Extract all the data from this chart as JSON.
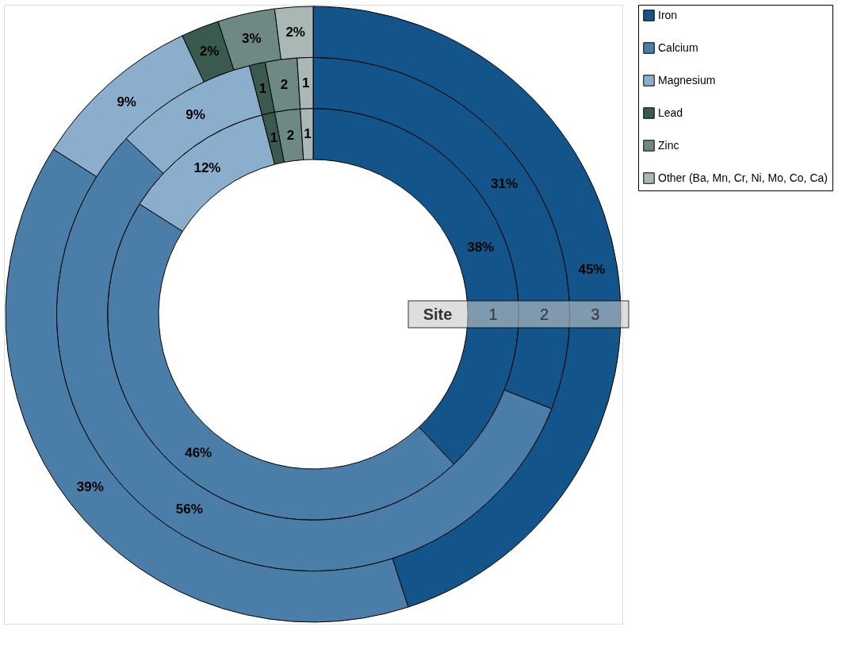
{
  "chart_data": {
    "type": "donut",
    "categories": [
      "Iron",
      "Calcium",
      "Magnesium",
      "Lead",
      "Zinc",
      "Other (Ba, Mn, Cr, Ni, Mo, Co, Ca)"
    ],
    "colors": [
      "#13548a",
      "#4a7ea8",
      "#8aaecb",
      "#3a5a50",
      "#6e8883",
      "#a9b8b5"
    ],
    "series": [
      {
        "name": "1",
        "values": [
          38,
          46,
          12,
          1,
          2,
          1
        ],
        "value_labels": [
          "38%",
          "46%",
          "12%",
          "1",
          "2",
          "1"
        ]
      },
      {
        "name": "2",
        "values": [
          31,
          56,
          9,
          1,
          2,
          1
        ],
        "value_labels": [
          "31%",
          "56%",
          "9%",
          "1",
          "2",
          "1"
        ]
      },
      {
        "name": "3",
        "values": [
          45,
          39,
          9,
          2,
          3,
          2
        ],
        "value_labels": [
          "45%",
          "39%",
          "9%",
          "2%",
          "3%",
          "2%"
        ]
      }
    ],
    "annotations": [
      "Site"
    ],
    "legend": "top right"
  }
}
